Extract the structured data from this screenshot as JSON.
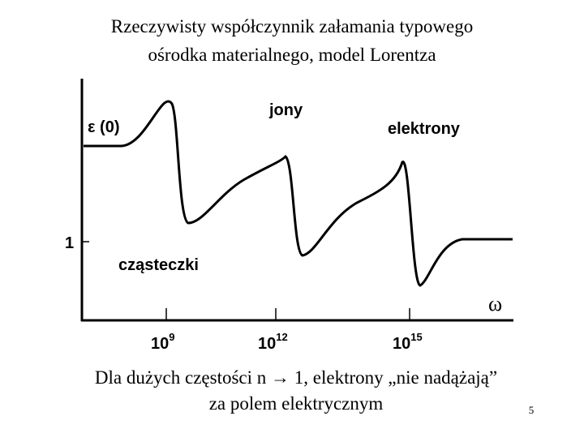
{
  "title": [
    "Rzeczywisty współczynnik załamania typowego",
    "ośrodka materialnego, model Lorentza"
  ],
  "plot": {
    "y_label": "ε (0)",
    "y_one": "1",
    "x_label": "ω",
    "labels": {
      "ions": "jony",
      "electrons": "elektrony",
      "molecules": "cząsteczki"
    },
    "x_ticks": [
      {
        "base": "10",
        "exp": "9"
      },
      {
        "base": "10",
        "exp": "12"
      },
      {
        "base": "10",
        "exp": "15"
      }
    ]
  },
  "caption": [
    "Dla dużych częstości n → 1, elektrony „nie nadążają”",
    "za polem elektrycznym"
  ],
  "page_number": "5"
}
